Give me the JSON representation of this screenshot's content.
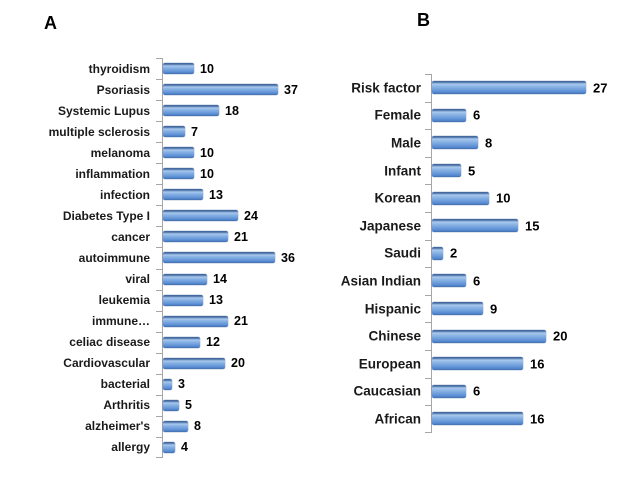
{
  "figure": {
    "background": "#ffffff",
    "axis_color": "#a6a6a6",
    "label_color": "#1a1a1a",
    "value_color": "#000000",
    "bar_gradient": [
      "#44699f",
      "#a9c9ee",
      "#8fb7e6",
      "#6496d8",
      "#4d80c9"
    ]
  },
  "chart_data": [
    {
      "type": "bar",
      "orientation": "horizontal",
      "title": "A",
      "categories": [
        "thyroidism",
        "Psoriasis",
        "Systemic Lupus",
        "multiple sclerosis",
        "melanoma",
        "inflammation",
        "infection",
        "Diabetes Type I",
        "cancer",
        "autoimmune",
        "viral",
        "leukemia",
        "immune…",
        "celiac disease",
        "Cardiovascular",
        "bacterial",
        "Arthritis",
        "alzheimer's",
        "allergy"
      ],
      "values": [
        10,
        37,
        18,
        7,
        10,
        10,
        13,
        24,
        21,
        36,
        14,
        13,
        21,
        12,
        20,
        3,
        5,
        8,
        4
      ],
      "data_labels": true,
      "xlim": [
        0,
        40
      ],
      "xlabel": "",
      "ylabel": "",
      "grid": false,
      "legend": "none"
    },
    {
      "type": "bar",
      "orientation": "horizontal",
      "title": "B",
      "categories": [
        "Risk factor",
        "Female",
        "Male",
        "Infant",
        "Korean",
        "Japanese",
        "Saudi",
        "Asian Indian",
        "Hispanic",
        "Chinese",
        "European",
        "Caucasian",
        "African"
      ],
      "values": [
        27,
        6,
        8,
        5,
        10,
        15,
        2,
        6,
        9,
        20,
        16,
        6,
        16
      ],
      "data_labels": true,
      "xlim": [
        0,
        30
      ],
      "xlabel": "",
      "ylabel": "",
      "grid": false,
      "legend": "none"
    }
  ]
}
